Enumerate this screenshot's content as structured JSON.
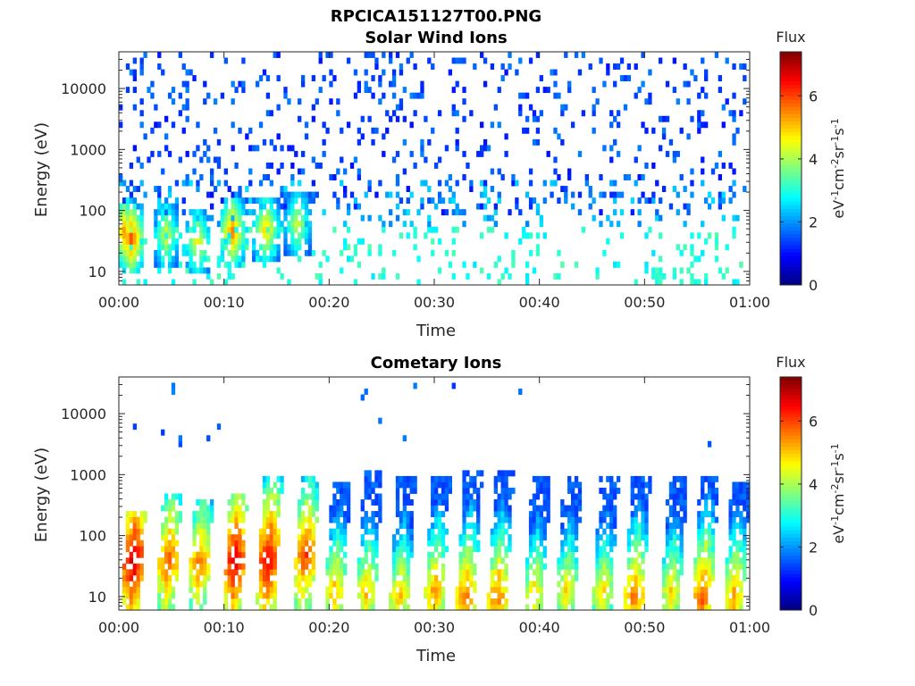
{
  "figure": {
    "title": "RPCICA151127T00.PNG"
  },
  "chart_data": [
    {
      "type": "heatmap",
      "title": "Solar Wind Ions",
      "xlabel": "Time",
      "ylabel": "Energy (eV)",
      "x_ticks": [
        "00:00",
        "00:10",
        "00:20",
        "00:30",
        "00:40",
        "00:50",
        "01:00"
      ],
      "x_range_minutes": [
        0,
        60
      ],
      "y_scale": "log",
      "y_ticks": [
        10,
        100,
        1000,
        10000
      ],
      "y_tick_labels": [
        "10",
        "100",
        "1000",
        "10000"
      ],
      "y_range": [
        6,
        40000
      ],
      "colorbar": {
        "label": "Flux",
        "unit_label": "eV-1cm-2sr-1s-1",
        "range": [
          0,
          7.4
        ],
        "ticks": [
          0,
          2,
          4,
          6
        ],
        "colormap": "jet"
      },
      "description_of_data": "Sparse low-flux (about 1-2) counts scattered across 100-20000 eV throughout the hour; moderate flux (3-5) bands at 10-100 eV mainly before 00:20; peak flux about 6-7 near 35 eV at 00:01 and 00:11.",
      "bursts": [
        {
          "time_min": 0.5,
          "energy_ev": 45,
          "flux": 5.5
        },
        {
          "time_min": 1.2,
          "energy_ev": 35,
          "flux": 6.2
        },
        {
          "time_min": 4.5,
          "energy_ev": 40,
          "flux": 4.5
        },
        {
          "time_min": 7.5,
          "energy_ev": 30,
          "flux": 4.8
        },
        {
          "time_min": 10.8,
          "energy_ev": 45,
          "flux": 5.8
        },
        {
          "time_min": 14.0,
          "energy_ev": 50,
          "flux": 5.2
        },
        {
          "time_min": 17.0,
          "energy_ev": 60,
          "flux": 4.5
        }
      ]
    },
    {
      "type": "heatmap",
      "title": "Cometary Ions",
      "xlabel": "Time",
      "ylabel": "Energy (eV)",
      "x_ticks": [
        "00:00",
        "00:10",
        "00:20",
        "00:30",
        "00:40",
        "00:50",
        "01:00"
      ],
      "x_range_minutes": [
        0,
        60
      ],
      "y_scale": "log",
      "y_ticks": [
        10,
        100,
        1000,
        10000
      ],
      "y_tick_labels": [
        "10",
        "100",
        "1000",
        "10000"
      ],
      "y_range": [
        6,
        40000
      ],
      "colorbar": {
        "label": "Flux",
        "unit_label": "eV-1cm-2sr-1s-1",
        "range": [
          0,
          7.4
        ],
        "ticks": [
          0,
          2,
          4,
          6
        ],
        "colormap": "jet"
      },
      "description_of_data": "Quasi-periodic vertical bursts roughly every 3 minutes spanning 8-1000 eV; strongest (flux 6-7) near 30-50 eV in the first 18 minutes; later bursts peak at low energies (8-12 eV) with flux about 5-6.",
      "bursts": [
        {
          "time_min": 1.2,
          "peak_energy_ev": 40,
          "peak_flux": 7.0,
          "top_energy_ev": 250
        },
        {
          "time_min": 4.5,
          "peak_energy_ev": 40,
          "peak_flux": 6.0,
          "top_energy_ev": 500
        },
        {
          "time_min": 7.5,
          "peak_energy_ev": 35,
          "peak_flux": 5.8,
          "top_energy_ev": 400
        },
        {
          "time_min": 10.8,
          "peak_energy_ev": 40,
          "peak_flux": 6.8,
          "top_energy_ev": 500
        },
        {
          "time_min": 14.0,
          "peak_energy_ev": 40,
          "peak_flux": 6.8,
          "top_energy_ev": 900
        },
        {
          "time_min": 17.5,
          "peak_energy_ev": 50,
          "peak_flux": 6.2,
          "top_energy_ev": 900
        },
        {
          "time_min": 20.5,
          "peak_energy_ev": 12,
          "peak_flux": 5.3,
          "top_energy_ev": 700
        },
        {
          "time_min": 23.5,
          "peak_energy_ev": 12,
          "peak_flux": 5.2,
          "top_energy_ev": 1200
        },
        {
          "time_min": 26.7,
          "peak_energy_ev": 10,
          "peak_flux": 5.2,
          "top_energy_ev": 900
        },
        {
          "time_min": 30.0,
          "peak_energy_ev": 12,
          "peak_flux": 5.5,
          "top_energy_ev": 900
        },
        {
          "time_min": 33.0,
          "peak_energy_ev": 10,
          "peak_flux": 5.8,
          "top_energy_ev": 1200
        },
        {
          "time_min": 36.0,
          "peak_energy_ev": 10,
          "peak_flux": 5.8,
          "top_energy_ev": 1200
        },
        {
          "time_min": 39.5,
          "peak_energy_ev": 12,
          "peak_flux": 5.0,
          "top_energy_ev": 900
        },
        {
          "time_min": 42.5,
          "peak_energy_ev": 12,
          "peak_flux": 5.0,
          "top_energy_ev": 900
        },
        {
          "time_min": 46.0,
          "peak_energy_ev": 12,
          "peak_flux": 5.0,
          "top_energy_ev": 900
        },
        {
          "time_min": 49.0,
          "peak_energy_ev": 10,
          "peak_flux": 5.8,
          "top_energy_ev": 900
        },
        {
          "time_min": 52.5,
          "peak_energy_ev": 12,
          "peak_flux": 5.0,
          "top_energy_ev": 900
        },
        {
          "time_min": 55.5,
          "peak_energy_ev": 10,
          "peak_flux": 6.0,
          "top_energy_ev": 1000
        },
        {
          "time_min": 58.5,
          "peak_energy_ev": 10,
          "peak_flux": 5.5,
          "top_energy_ev": 800
        }
      ]
    }
  ]
}
